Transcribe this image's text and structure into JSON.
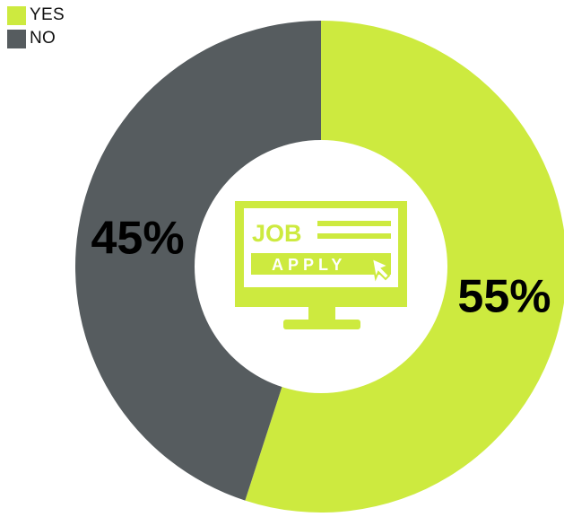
{
  "chart_data": {
    "type": "pie",
    "donut": true,
    "legend_position": "top-left",
    "title": "",
    "slices": [
      {
        "label": "YES",
        "value": 55,
        "value_label": "55%",
        "color": "#CDEA3F"
      },
      {
        "label": "NO",
        "value": 45,
        "value_label": "45%",
        "color": "#565C5F"
      }
    ]
  },
  "center_icon": {
    "name": "job-apply-monitor-icon",
    "job_text": "JOB",
    "apply_text": "APPLY",
    "color": "#CDEA3F"
  }
}
